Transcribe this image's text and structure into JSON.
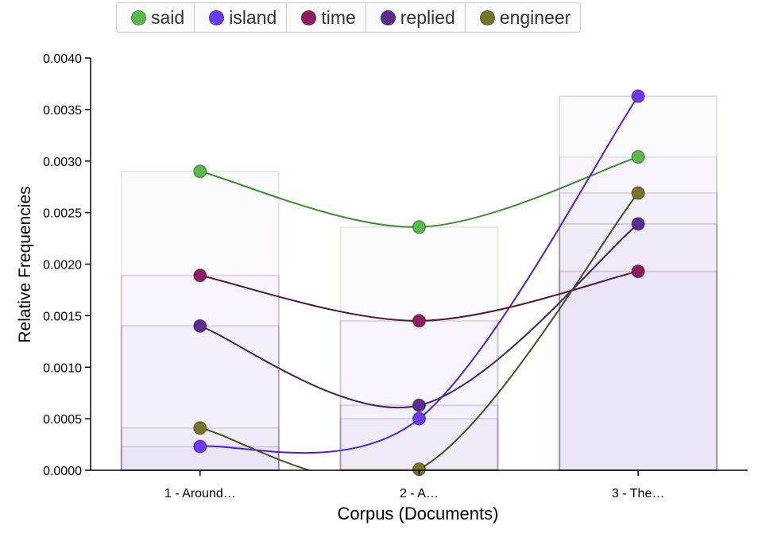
{
  "legend": [
    {
      "label": "said",
      "color": "#5ab94a"
    },
    {
      "label": "island",
      "color": "#6a3bf0"
    },
    {
      "label": "time",
      "color": "#8e1f5e"
    },
    {
      "label": "replied",
      "color": "#5b2d8f"
    },
    {
      "label": "engineer",
      "color": "#76762a"
    }
  ],
  "chart_data": {
    "type": "line",
    "xlabel": "Corpus (Documents)",
    "ylabel": "Relative Frequencies",
    "categories": [
      "1 - Around…",
      "2 - A…",
      "3 - The…"
    ],
    "yticks": [
      "0.0000",
      "0.0005",
      "0.0010",
      "0.0015",
      "0.0020",
      "0.0025",
      "0.0030",
      "0.0035",
      "0.0040"
    ],
    "ylim": [
      0,
      0.004
    ],
    "grid": false,
    "legend_position": "top",
    "background_bars": true,
    "series": [
      {
        "name": "said",
        "values": [
          0.0029,
          0.00236,
          0.00304
        ],
        "color": "#5ab94a",
        "line_color": "#3f8a33"
      },
      {
        "name": "island",
        "values": [
          0.00023,
          0.0005,
          0.00363
        ],
        "color": "#6a3bf0",
        "line_color": "#4f1fd8"
      },
      {
        "name": "time",
        "values": [
          0.00189,
          0.00145,
          0.00193
        ],
        "color": "#8e1f5e",
        "line_color": "#4f1536"
      },
      {
        "name": "replied",
        "values": [
          0.0014,
          0.00063,
          0.00239
        ],
        "color": "#5b2d8f",
        "line_color": "#3a2363"
      },
      {
        "name": "engineer",
        "values": [
          0.00041,
          1e-05,
          0.00269
        ],
        "color": "#76762a",
        "line_color": "#4a4a22"
      }
    ]
  }
}
